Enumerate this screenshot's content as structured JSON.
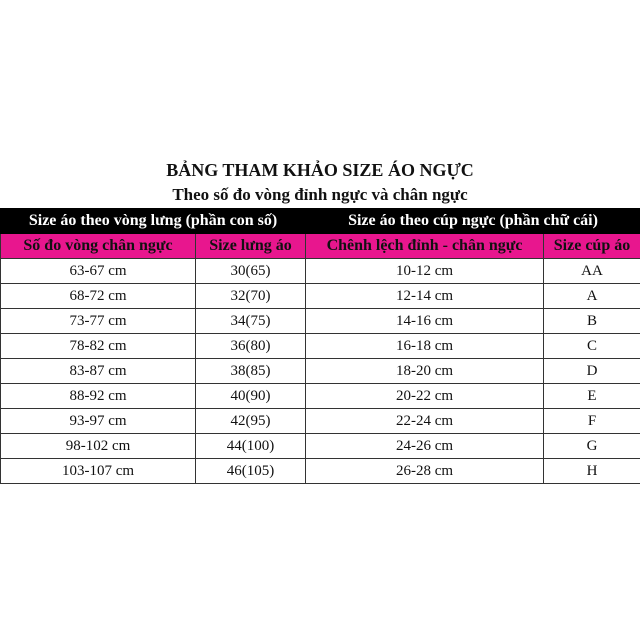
{
  "title": "BẢNG THAM KHẢO SIZE ÁO NGỰC",
  "subtitle": "Theo số đo vòng đỉnh ngực và chân ngực",
  "colors": {
    "group_header_bg": "#000000",
    "column_header_bg": "#e8168e"
  },
  "group_headers": [
    "Size áo theo vòng lưng (phần con số)",
    "Size áo theo cúp ngực (phần chữ cái)"
  ],
  "columns": [
    "Số đo vòng chân ngực",
    "Size lưng áo",
    "Chênh lệch đỉnh - chân ngực",
    "Size cúp áo"
  ],
  "rows": [
    [
      "63-67 cm",
      "30(65)",
      "10-12 cm",
      "AA"
    ],
    [
      "68-72 cm",
      "32(70)",
      "12-14 cm",
      "A"
    ],
    [
      "73-77 cm",
      "34(75)",
      "14-16 cm",
      "B"
    ],
    [
      "78-82 cm",
      "36(80)",
      "16-18 cm",
      "C"
    ],
    [
      "83-87 cm",
      "38(85)",
      "18-20 cm",
      "D"
    ],
    [
      "88-92 cm",
      "40(90)",
      "20-22 cm",
      "E"
    ],
    [
      "93-97 cm",
      "42(95)",
      "22-24 cm",
      "F"
    ],
    [
      "98-102 cm",
      "44(100)",
      "24-26 cm",
      "G"
    ],
    [
      "103-107 cm",
      "46(105)",
      "26-28 cm",
      "H"
    ]
  ]
}
